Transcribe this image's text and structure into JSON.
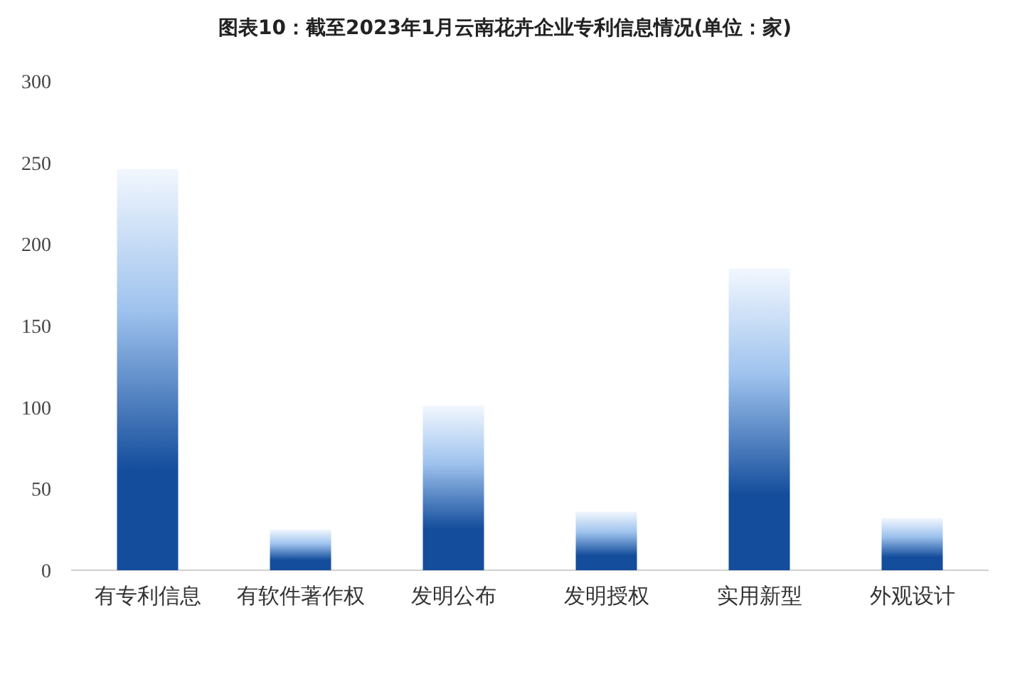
{
  "chart_data": {
    "type": "bar",
    "title": "图表10：截至2023年1月云南花卉企业专利信息情况(单位：家)",
    "categories": [
      "有专利信息",
      "有软件著作权",
      "发明公布",
      "发明授权",
      "实用新型",
      "外观设计"
    ],
    "values": [
      246,
      25,
      101,
      36,
      185,
      32
    ],
    "color": "#144d9c",
    "ylim": [
      0,
      300
    ],
    "yticks": [
      0,
      50,
      100,
      150,
      200,
      250,
      300
    ],
    "grid": false
  }
}
